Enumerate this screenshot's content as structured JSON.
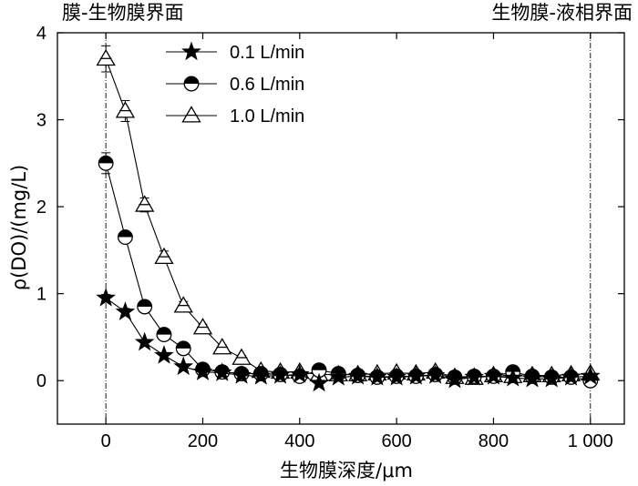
{
  "chart_data": {
    "type": "line",
    "xlabel": "生物膜深度/μm",
    "ylabel": "ρ(DO)/(mg/L)",
    "xlim": [
      -100,
      1070
    ],
    "ylim": [
      -0.5,
      4
    ],
    "x_ticks": [
      0,
      200,
      400,
      600,
      800,
      1000
    ],
    "x_tick_labels": [
      "0",
      "200",
      "400",
      "600",
      "800",
      "1 000"
    ],
    "y_ticks": [
      0,
      1,
      2,
      3,
      4
    ],
    "y_tick_labels": [
      "0",
      "1",
      "2",
      "3",
      "4"
    ],
    "grid": false,
    "legend_position": "top-center",
    "annotations": [
      {
        "text": "膜-生物膜界面",
        "x": 0
      },
      {
        "text": "生物膜-液相界面",
        "x": 1000
      }
    ],
    "x": [
      0,
      40,
      80,
      120,
      160,
      200,
      240,
      280,
      320,
      360,
      400,
      440,
      480,
      520,
      560,
      600,
      640,
      680,
      720,
      760,
      800,
      840,
      880,
      920,
      960,
      1000
    ],
    "series": [
      {
        "name": "0.1 L/min",
        "marker": "star",
        "values": [
          0.95,
          0.79,
          0.44,
          0.29,
          0.16,
          0.1,
          0.09,
          0.06,
          0.05,
          0.06,
          0.07,
          -0.03,
          0.04,
          0.05,
          0.04,
          0.04,
          0.05,
          0.06,
          0.01,
          0.04,
          0.05,
          0.03,
          0.02,
          0.02,
          0.04,
          0.05
        ],
        "errors": [
          0.04,
          0.04,
          0.03,
          0.02,
          0.02,
          0.02,
          0.02,
          0.02,
          0.02,
          0.02,
          0.02,
          0.02,
          0.02,
          0.02,
          0.02,
          0.02,
          0.02,
          0.02,
          0.02,
          0.02,
          0.02,
          0.02,
          0.02,
          0.02,
          0.02,
          0.02
        ]
      },
      {
        "name": "0.6 L/min",
        "marker": "half-filled-circle",
        "values": [
          2.5,
          1.65,
          0.85,
          0.53,
          0.37,
          0.13,
          0.1,
          0.08,
          0.08,
          0.07,
          0.05,
          0.12,
          0.08,
          0.06,
          0.04,
          0.05,
          0.05,
          0.07,
          0.04,
          0.05,
          0.05,
          0.1,
          0.05,
          0.04,
          0.04,
          0.0
        ],
        "errors": [
          0.12,
          0.06,
          0.04,
          0.04,
          0.03,
          0.02,
          0.02,
          0.02,
          0.02,
          0.02,
          0.02,
          0.02,
          0.02,
          0.02,
          0.02,
          0.02,
          0.02,
          0.02,
          0.02,
          0.02,
          0.02,
          0.02,
          0.02,
          0.02,
          0.02,
          0.02
        ]
      },
      {
        "name": "1.0 L/min",
        "marker": "triangle",
        "values": [
          3.7,
          3.1,
          2.02,
          1.42,
          0.86,
          0.61,
          0.38,
          0.26,
          0.11,
          0.1,
          0.1,
          0.07,
          0.07,
          0.07,
          0.08,
          0.09,
          0.08,
          0.1,
          0.04,
          0.03,
          0.06,
          0.05,
          0.06,
          0.06,
          0.07,
          0.08
        ],
        "errors": [
          0.15,
          0.12,
          0.08,
          0.07,
          0.05,
          0.04,
          0.03,
          0.03,
          0.02,
          0.02,
          0.02,
          0.02,
          0.02,
          0.02,
          0.02,
          0.02,
          0.02,
          0.02,
          0.02,
          0.02,
          0.02,
          0.02,
          0.02,
          0.02,
          0.02,
          0.02
        ]
      }
    ]
  }
}
